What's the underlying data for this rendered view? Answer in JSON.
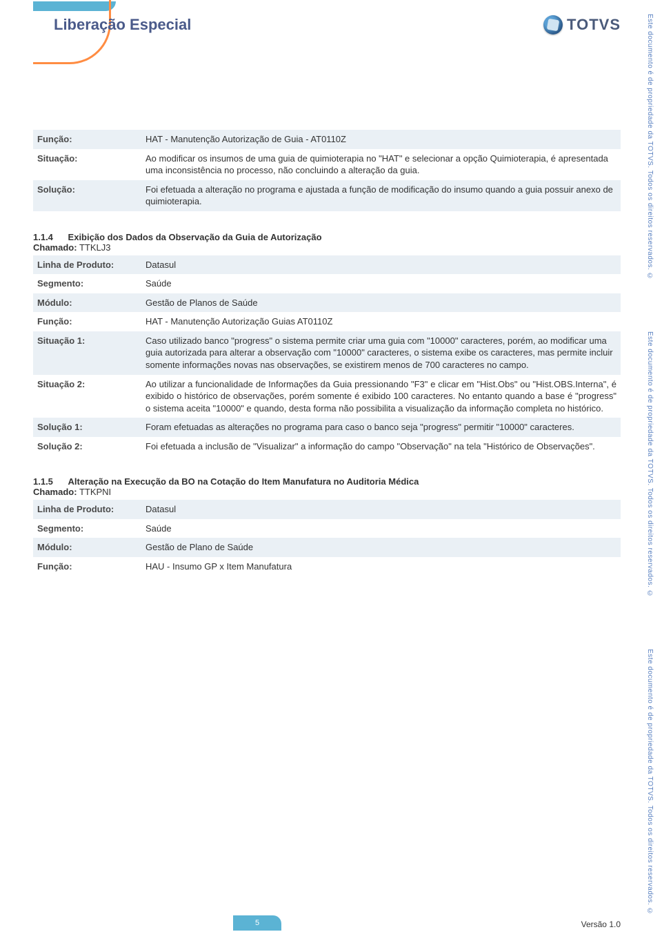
{
  "colors": {
    "header_text": "#4a5a8a",
    "accent_orange": "#ff8c42",
    "accent_blue": "#5bb3d4",
    "shaded_row": "#eaf0f5",
    "side_text": "#5980c0"
  },
  "header": {
    "title": "Liberação Especial",
    "logo_text": "TOTVS"
  },
  "side_text": "Este documento é de propriedade da TOTVS. Todos os direitos reservados. ©",
  "section_top": {
    "rows": [
      {
        "label": "Função:",
        "value": "HAT - Manutenção Autorização de Guia - AT0110Z",
        "shaded": true
      },
      {
        "label": "Situação:",
        "value": "Ao modificar os insumos de uma guia de quimioterapia no \"HAT\" e selecionar a opção Quimioterapia, é apresentada uma inconsistência no processo, não concluindo a alteração da guia.",
        "shaded": false
      },
      {
        "label": "Solução:",
        "value": "Foi efetuada a alteração no programa e ajustada a função de modificação do insumo quando a guia possuir anexo de quimioterapia.",
        "shaded": true
      }
    ]
  },
  "section_114": {
    "num": "1.1.4",
    "title": "Exibição dos Dados da Observação da Guia de Autorização",
    "chamado_label": "Chamado:",
    "chamado_value": " TTKLJ3",
    "rows": [
      {
        "label": "Linha de Produto:",
        "value": "Datasul",
        "shaded": true
      },
      {
        "label": "Segmento:",
        "value": "Saúde",
        "shaded": false
      },
      {
        "label": "Módulo:",
        "value": "Gestão de Planos de Saúde",
        "shaded": true
      },
      {
        "label": "Função:",
        "value": "HAT - Manutenção Autorização Guias AT0110Z",
        "shaded": false
      },
      {
        "label": "Situação 1:",
        "value": "Caso utilizado banco \"progress\" o sistema permite criar uma guia com \"10000\" caracteres, porém, ao modificar uma guia autorizada para alterar a observação com \"10000\" caracteres, o sistema exibe os caracteres, mas permite incluir somente informações novas nas observações, se existirem menos de 700 caracteres no campo.",
        "shaded": true
      },
      {
        "label": "Situação 2:",
        "value": "Ao utilizar a funcionalidade de Informações da Guia pressionando \"F3\" e clicar em \"Hist.Obs\" ou \"Hist.OBS.Interna\", é exibido o histórico de observações, porém somente é exibido 100 caracteres. No entanto quando a base é \"progress\" o sistema aceita \"10000\" e quando, desta forma não possibilita a visualização da informação completa no histórico.",
        "shaded": false,
        "justify": true
      },
      {
        "label": "Solução 1:",
        "value": "Foram efetuadas as alterações no programa para caso o banco seja \"progress\" permitir \"10000\" caracteres.",
        "shaded": true,
        "justify": true
      },
      {
        "label": "Solução 2:",
        "value": "Foi efetuada a inclusão de \"Visualizar\" a informação do campo \"Observação\" na tela \"Histórico de Observações\".",
        "shaded": false,
        "justify": true
      }
    ]
  },
  "section_115": {
    "num": "1.1.5",
    "title": "Alteração na Execução da BO na Cotação do Item Manufatura no Auditoria Médica",
    "chamado_label": "Chamado:",
    "chamado_value": " TTKPNI",
    "rows": [
      {
        "label": "Linha de Produto:",
        "value": "Datasul",
        "shaded": true
      },
      {
        "label": "Segmento:",
        "value": "Saúde",
        "shaded": false
      },
      {
        "label": "Módulo:",
        "value": "Gestão de Plano de Saúde",
        "shaded": true
      },
      {
        "label": "Função:",
        "value": "HAU - Insumo GP x Item Manufatura",
        "shaded": false
      }
    ]
  },
  "footer": {
    "page": "5",
    "version": "Versão 1.0"
  }
}
